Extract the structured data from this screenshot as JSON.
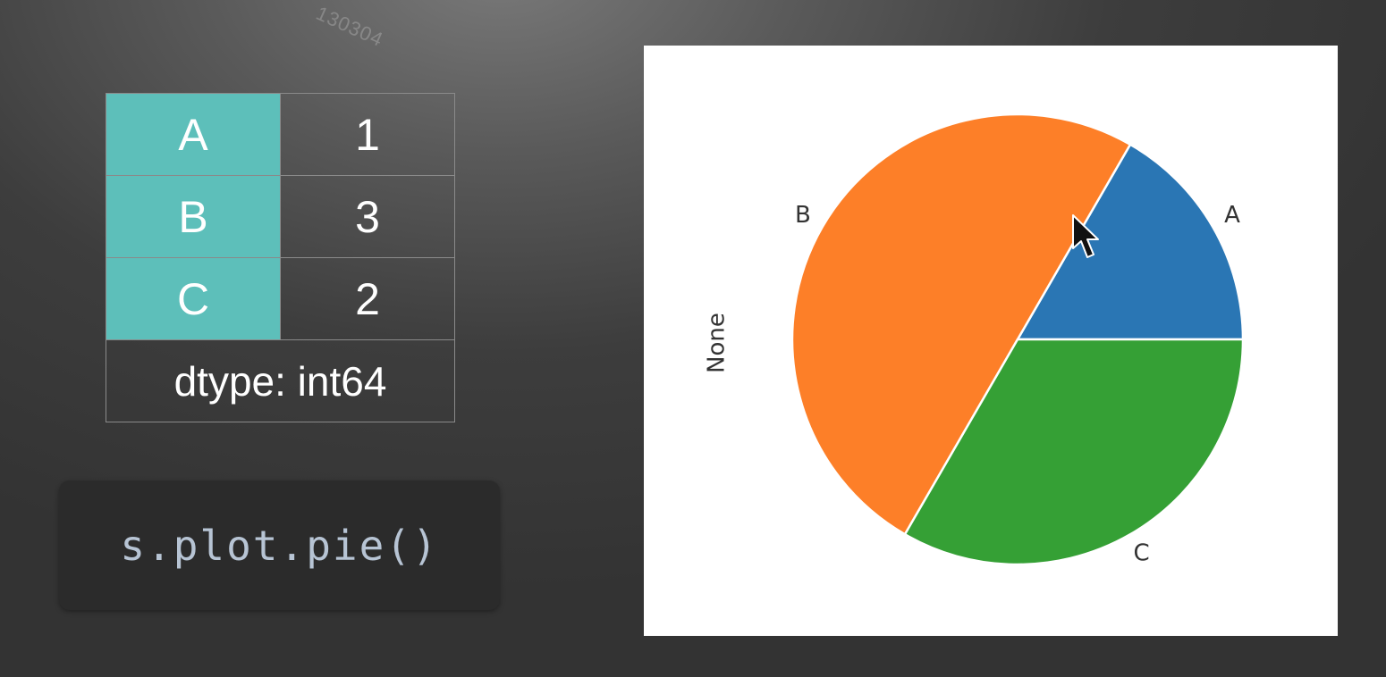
{
  "watermark": "130304",
  "series": {
    "rows": [
      {
        "index": "A",
        "value": "1"
      },
      {
        "index": "B",
        "value": "3"
      },
      {
        "index": "C",
        "value": "2"
      }
    ],
    "dtype": "dtype: int64"
  },
  "code": "s.plot.pie()",
  "chart_data": {
    "type": "pie",
    "categories": [
      "A",
      "B",
      "C"
    ],
    "values": [
      1,
      3,
      2
    ],
    "ylabel": "None",
    "colors": [
      "#2a76b4",
      "#fd7f28",
      "#35a035"
    ],
    "start_angle": 0,
    "direction": "counterclockwise",
    "grid": false
  }
}
